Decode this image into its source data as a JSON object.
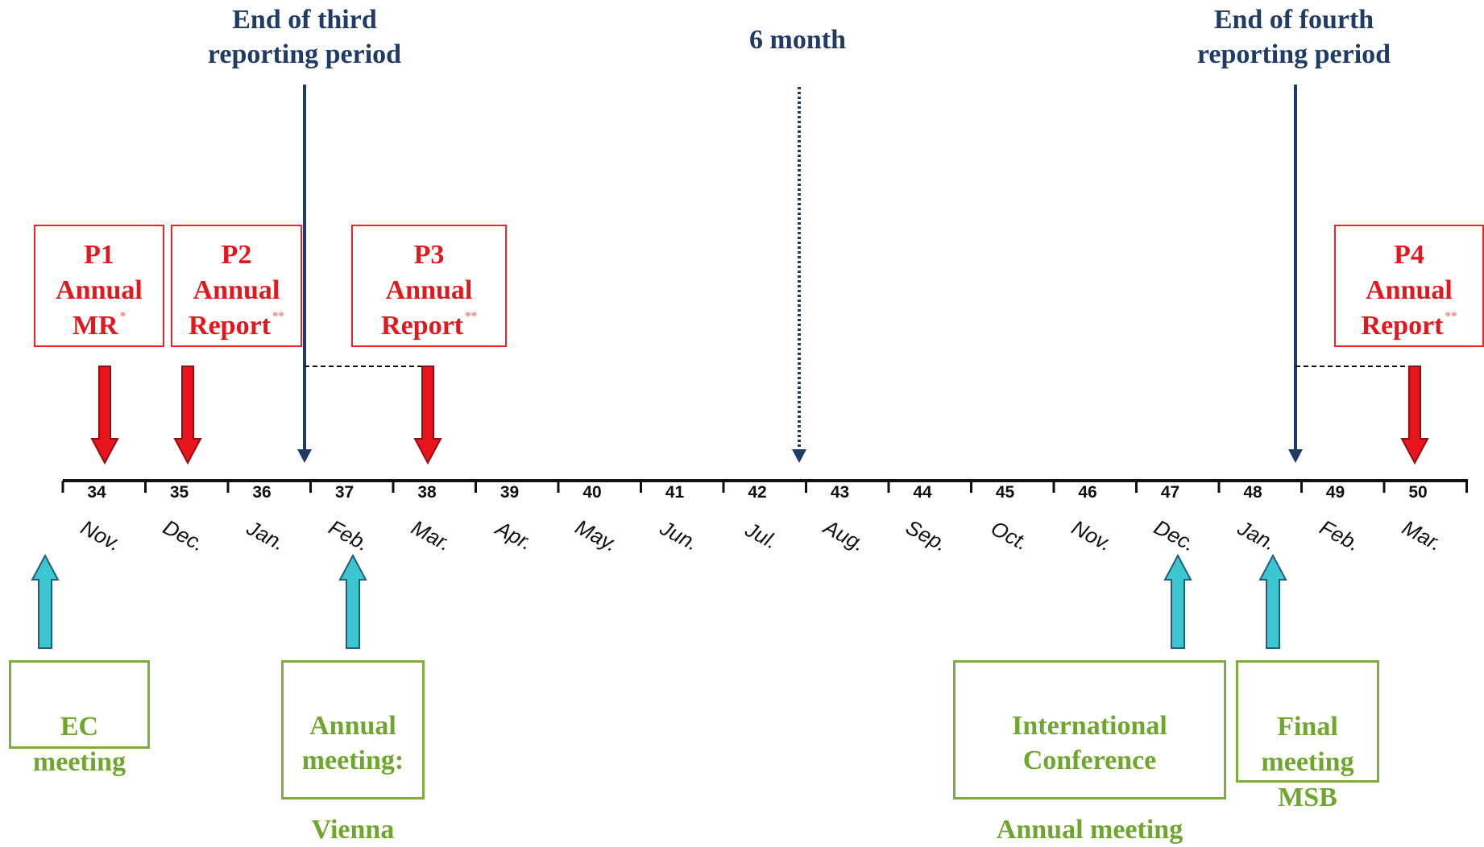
{
  "period_labels": {
    "third": "End of third\nreporting period",
    "six_month": "6 month",
    "fourth": "End of fourth\nreporting period"
  },
  "reports": [
    {
      "line1": "P1",
      "line2": "Annual",
      "line3": "MR",
      "mark": "*"
    },
    {
      "line1": "P2",
      "line2": "Annual",
      "line3": "Report",
      "mark": "**"
    },
    {
      "line1": "P3",
      "line2": "Annual",
      "line3": "Report",
      "mark": "**"
    },
    {
      "line1": "P4",
      "line2": "Annual",
      "line3": "Report",
      "mark": "**"
    }
  ],
  "months": [
    {
      "num": "34",
      "name": "Nov."
    },
    {
      "num": "35",
      "name": "Dec."
    },
    {
      "num": "36",
      "name": "Jan."
    },
    {
      "num": "37",
      "name": "Feb."
    },
    {
      "num": "38",
      "name": "Mar."
    },
    {
      "num": "39",
      "name": "Apr."
    },
    {
      "num": "40",
      "name": "May."
    },
    {
      "num": "41",
      "name": "Jun."
    },
    {
      "num": "42",
      "name": "Jul."
    },
    {
      "num": "43",
      "name": "Aug."
    },
    {
      "num": "44",
      "name": "Sep."
    },
    {
      "num": "45",
      "name": "Oct."
    },
    {
      "num": "46",
      "name": "Nov."
    },
    {
      "num": "47",
      "name": "Dec."
    },
    {
      "num": "48",
      "name": "Jan."
    },
    {
      "num": "49",
      "name": "Feb."
    },
    {
      "num": "50",
      "name": "Mar."
    }
  ],
  "meetings": [
    {
      "text": "EC\nmeeting"
    },
    {
      "text": "Annual\nmeeting:\n\nVienna"
    },
    {
      "text": "International\nConference\n\nAnnual  meeting"
    },
    {
      "text": "Final\nmeeting\nMSB"
    }
  ],
  "colors": {
    "navy": "#1f3b66",
    "report_red": "#e3181e",
    "arrow_red": "#e8141b",
    "meeting_green": "#6fa62e",
    "arrow_cyan": "#3cc6cf"
  }
}
